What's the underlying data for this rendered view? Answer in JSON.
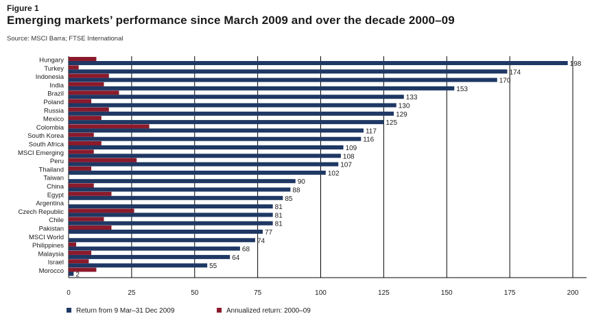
{
  "figure_label": "Figure 1",
  "title": "Emerging markets’ performance since March 2009 and over the decade 2000–09",
  "source": "Source: MSCI Barra; FTSE International",
  "colors": {
    "primary": "#1f3864",
    "secondary": "#8b1a2b",
    "gridline": "#000000"
  },
  "chart_data": {
    "type": "bar",
    "orientation": "horizontal",
    "categories": [
      "Hungary",
      "Turkey",
      "Indonesia",
      "India",
      "Brazil",
      "Poland",
      "Russia",
      "Mexico",
      "Colombia",
      "South Korea",
      "South Africa",
      "MSCI Emerging",
      "Peru",
      "Thailand",
      "Taiwan",
      "China",
      "Egypt",
      "Argentina",
      "Czech Republic",
      "Chile",
      "Pakistan",
      "MSCI World",
      "Philippines",
      "Malaysia",
      "Israel",
      "Morocco"
    ],
    "series": [
      {
        "name": "Return from 9 Mar–31 Dec 2009",
        "color": "#1f3864",
        "values": [
          198,
          174,
          170,
          153,
          133,
          130,
          129,
          125,
          117,
          116,
          109,
          108,
          107,
          102,
          90,
          88,
          85,
          81,
          81,
          81,
          77,
          74,
          68,
          64,
          55,
          2
        ],
        "labels": [
          "198",
          "174",
          "170",
          "153",
          "133",
          "130",
          "129",
          "125",
          "117",
          "116",
          "109",
          "108",
          "107",
          "102",
          "90",
          "88",
          "85",
          "81",
          "81",
          "81",
          "77",
          "74",
          "68",
          "64",
          "55",
          "2"
        ]
      },
      {
        "name": "Annualized return: 2000–09",
        "color": "#8b1a2b",
        "values": [
          11,
          4,
          16,
          14,
          20,
          9,
          16,
          13,
          32,
          10,
          13,
          10,
          27,
          9,
          0,
          10,
          17,
          0,
          26,
          14,
          17,
          0,
          3,
          9,
          8,
          11
        ]
      }
    ],
    "xlim": [
      0,
      200
    ],
    "xticks": [
      "0",
      "25",
      "50",
      "75",
      "100",
      "125",
      "150",
      "175",
      "200"
    ],
    "grid": "vertical",
    "legend_position": "bottom"
  }
}
